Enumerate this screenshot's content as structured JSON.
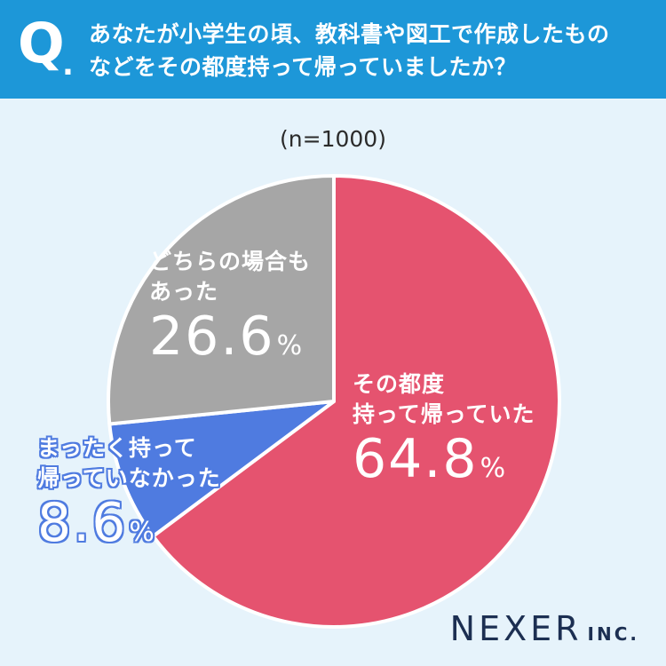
{
  "header": {
    "q_mark": "Q",
    "q_dot": ".",
    "question_line1": "あなたが小学生の頃、教科書や図工で作成したもの",
    "question_line2": "などをその都度持って帰っていましたか？"
  },
  "sample_size": "(n=1000)",
  "chart_data": {
    "type": "pie",
    "title": "",
    "categories": [
      "その都度持って帰っていた",
      "まったく持って帰っていなかった",
      "どちらの場合もあった"
    ],
    "values": [
      64.8,
      8.6,
      26.6
    ],
    "unit": "%",
    "colors": [
      "#e5536f",
      "#4f7be0",
      "#a6a6a6"
    ],
    "start": "12 o'clock, clockwise",
    "labels": {
      "yes": {
        "line1": "その都度",
        "line2": "持って帰っていた",
        "value": "64.8",
        "unit": "%"
      },
      "no": {
        "line1": "まったく持って",
        "line2": "帰っていなかった",
        "value": "8.6",
        "unit": "%"
      },
      "sometimes": {
        "line1": "どちらの場合も",
        "line2": "あった",
        "value": "26.6",
        "unit": "%"
      }
    }
  },
  "logo": {
    "name": "NEXER",
    "suffix": "INC."
  },
  "colors": {
    "header": "#1d97d8",
    "background": "#e6f3fb",
    "logo": "#1c2f52"
  }
}
